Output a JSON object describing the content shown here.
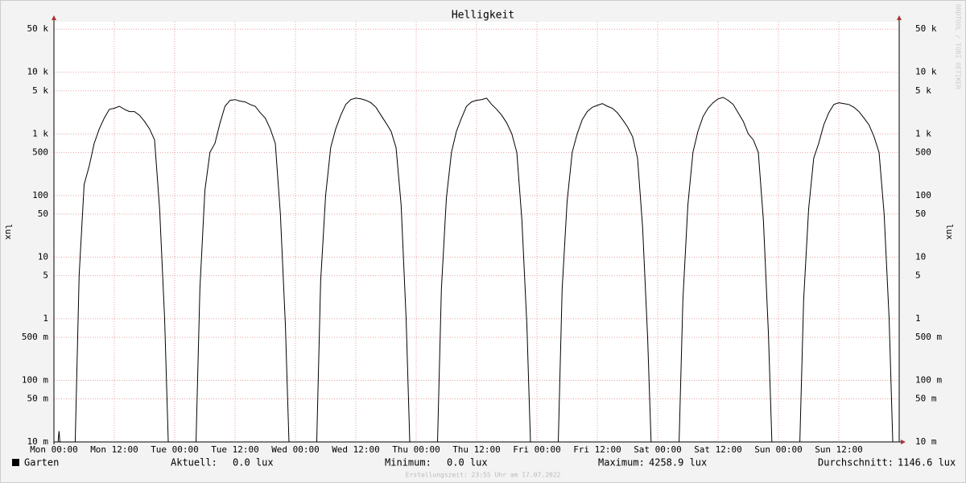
{
  "chart_data": {
    "type": "line",
    "title": "Helligkeit",
    "y_label": "lux",
    "watermark": "RRDTOOL / TOBI OETIKER",
    "footer": "Erstellungszeit: 23:55 Uhr am 17.07.2022",
    "log_y": true,
    "grid": true,
    "xlim": [
      0,
      168
    ],
    "ylim": [
      0.01,
      66000
    ],
    "xticks": [
      {
        "value": 0,
        "label": "Mon 00:00"
      },
      {
        "value": 12,
        "label": "Mon 12:00"
      },
      {
        "value": 24,
        "label": "Tue 00:00"
      },
      {
        "value": 36,
        "label": "Tue 12:00"
      },
      {
        "value": 48,
        "label": "Wed 00:00"
      },
      {
        "value": 60,
        "label": "Wed 12:00"
      },
      {
        "value": 72,
        "label": "Thu 00:00"
      },
      {
        "value": 84,
        "label": "Thu 12:00"
      },
      {
        "value": 96,
        "label": "Fri 00:00"
      },
      {
        "value": 108,
        "label": "Fri 12:00"
      },
      {
        "value": 120,
        "label": "Sat 00:00"
      },
      {
        "value": 132,
        "label": "Sat 12:00"
      },
      {
        "value": 144,
        "label": "Sun 00:00"
      },
      {
        "value": 156,
        "label": "Sun 12:00"
      }
    ],
    "yticks": [
      {
        "value": 0.01,
        "label": "10 m"
      },
      {
        "value": 0.05,
        "label": "50 m"
      },
      {
        "value": 0.1,
        "label": "100 m"
      },
      {
        "value": 0.5,
        "label": "500 m"
      },
      1,
      5,
      10,
      50,
      100,
      500,
      {
        "value": 1000,
        "label": "1 k"
      },
      {
        "value": 5000,
        "label": "5 k"
      },
      {
        "value": 10000,
        "label": "10 k"
      },
      {
        "value": 50000,
        "label": "50 k"
      }
    ],
    "x": [
      0,
      1,
      2,
      3,
      4,
      5,
      6,
      7,
      8,
      9,
      10,
      11,
      12,
      13,
      14,
      15,
      16,
      17,
      18,
      19,
      20,
      21,
      22,
      23,
      24,
      25,
      26,
      27,
      28,
      29,
      30,
      31,
      32,
      33,
      34,
      35,
      36,
      37,
      38,
      39,
      40,
      41,
      42,
      43,
      44,
      45,
      46,
      47,
      48,
      49,
      50,
      51,
      52,
      53,
      54,
      55,
      56,
      57,
      58,
      59,
      60,
      61,
      62,
      63,
      64,
      65,
      66,
      67,
      68,
      69,
      70,
      71,
      72,
      73,
      74,
      75,
      76,
      77,
      78,
      79,
      80,
      81,
      82,
      83,
      84,
      85,
      86,
      87,
      88,
      89,
      90,
      91,
      92,
      93,
      94,
      95,
      96,
      97,
      98,
      99,
      100,
      101,
      102,
      103,
      104,
      105,
      106,
      107,
      108,
      109,
      110,
      111,
      112,
      113,
      114,
      115,
      116,
      117,
      118,
      119,
      120,
      121,
      122,
      123,
      124,
      125,
      126,
      127,
      128,
      129,
      130,
      131,
      132,
      133,
      134,
      135,
      136,
      137,
      138,
      139,
      140,
      141,
      142,
      143,
      144,
      145,
      146,
      147,
      148,
      149,
      150,
      151,
      152,
      153,
      154,
      155,
      156,
      157,
      158,
      159,
      160,
      161,
      162,
      163,
      164,
      165,
      166,
      167,
      168
    ],
    "series": [
      {
        "name": "Garten",
        "color": "#000000",
        "values": [
          0,
          0.015,
          0,
          0,
          0,
          5,
          150,
          300,
          700,
          1200,
          1800,
          2500,
          2600,
          2800,
          2500,
          2300,
          2300,
          2000,
          1600,
          1200,
          800,
          60,
          1,
          0,
          0,
          0,
          0,
          0,
          0,
          3,
          120,
          500,
          700,
          1500,
          2800,
          3500,
          3600,
          3400,
          3300,
          3000,
          2800,
          2200,
          1800,
          1200,
          700,
          50,
          0.8,
          0,
          0,
          0,
          0,
          0,
          0,
          4,
          100,
          600,
          1200,
          2000,
          3000,
          3600,
          3800,
          3700,
          3500,
          3200,
          2700,
          2000,
          1500,
          1100,
          600,
          70,
          1,
          0,
          0,
          0,
          0,
          0,
          0,
          3,
          90,
          500,
          1100,
          1800,
          2800,
          3300,
          3500,
          3600,
          3800,
          3000,
          2500,
          2000,
          1500,
          1000,
          500,
          40,
          0.8,
          0,
          0,
          0,
          0,
          0,
          0,
          3,
          80,
          500,
          1000,
          1700,
          2300,
          2700,
          2900,
          3100,
          2800,
          2600,
          2200,
          1700,
          1300,
          900,
          400,
          30,
          0.5,
          0,
          0,
          0,
          0,
          0,
          0,
          2,
          70,
          500,
          1100,
          1900,
          2600,
          3200,
          3700,
          3900,
          3500,
          3000,
          2200,
          1600,
          1000,
          800,
          500,
          40,
          0.6,
          0,
          0,
          0,
          0,
          0,
          0,
          2,
          60,
          400,
          700,
          1400,
          2200,
          3000,
          3200,
          3100,
          3000,
          2700,
          2300,
          1800,
          1400,
          900,
          500,
          50,
          1,
          0,
          0
        ]
      }
    ],
    "stats": [
      {
        "label": "Aktuell:",
        "value": "0.0 lux"
      },
      {
        "label": "Minimum:",
        "value": "0.0 lux"
      },
      {
        "label": "Maximum:",
        "value": "4258.9 lux"
      },
      {
        "label": "Durchschnitt:",
        "value": "1146.6 lux"
      }
    ]
  }
}
